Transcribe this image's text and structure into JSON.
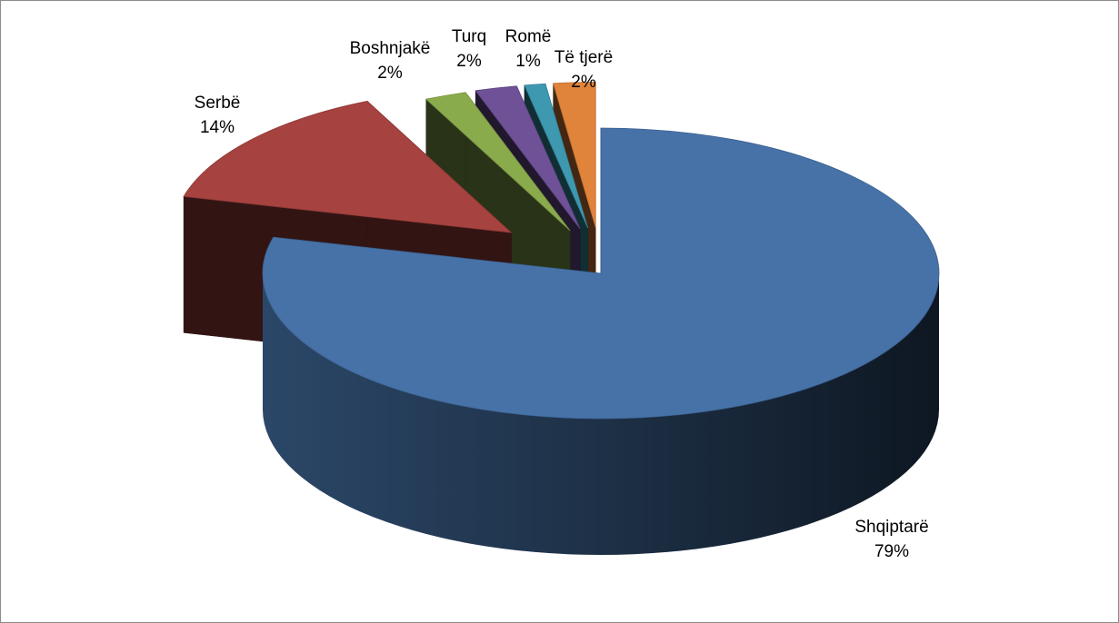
{
  "chart_data": {
    "type": "pie",
    "style": "3d-exploded",
    "title": "",
    "legend": "none",
    "slices": [
      {
        "label": "Shqiptarë",
        "value": 79,
        "value_label": "79%",
        "color": "#4672a8"
      },
      {
        "label": "Serbë",
        "value": 14,
        "value_label": "14%",
        "color": "#a6423f"
      },
      {
        "label": "Boshnjakë",
        "value": 2,
        "value_label": "2%",
        "color": "#8aab4c"
      },
      {
        "label": "Turq",
        "value": 2,
        "value_label": "2%",
        "color": "#6f5197"
      },
      {
        "label": "Romë",
        "value": 1,
        "value_label": "1%",
        "color": "#3d98b0"
      },
      {
        "label": "Të tjerë",
        "value": 2,
        "value_label": "2%",
        "color": "#e0833b"
      }
    ]
  }
}
